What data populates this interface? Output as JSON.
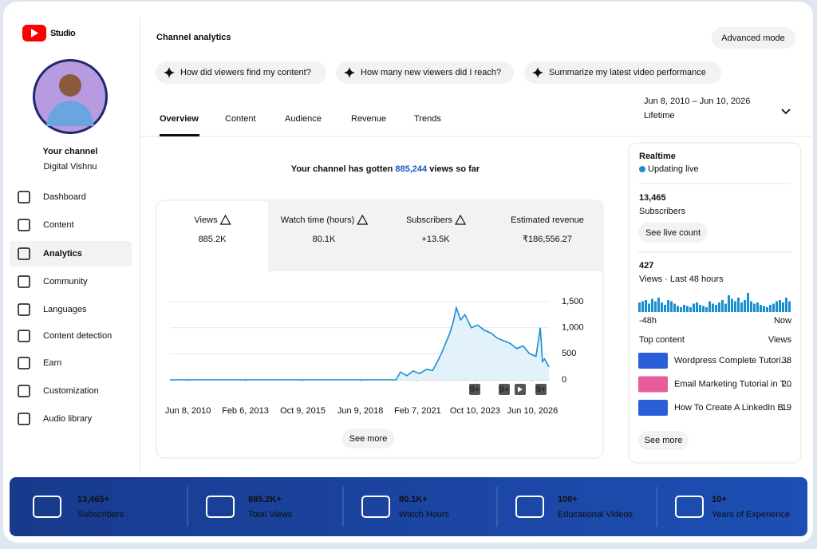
{
  "sidebar": {
    "logo": "Studio",
    "channel_title": "Your channel",
    "channel_name": "Digital Vishnu",
    "nav": [
      "Dashboard",
      "Content",
      "Analytics",
      "Community",
      "Languages",
      "Content detection",
      "Earn",
      "Customization",
      "Audio library"
    ],
    "active": 2
  },
  "header": {
    "title": "Channel analytics",
    "button": "Advanced mode",
    "prompts": [
      "How did viewers find my content?",
      "How many new viewers did I reach?",
      "Summarize my latest video performance"
    ]
  },
  "tabs": {
    "items": [
      "Overview",
      "Content",
      "Audience",
      "Revenue",
      "Trends"
    ],
    "active": 0
  },
  "date_range": {
    "range": "Jun 8, 2010 – Jun 10, 2026",
    "period": "Lifetime"
  },
  "headline": {
    "prefix": "Your channel has gotten ",
    "number": "885,244",
    "suffix": " views so far"
  },
  "metrics": [
    {
      "label": "Views",
      "value": "885.2K",
      "warning": true
    },
    {
      "label": "Watch time (hours)",
      "value": "80.1K",
      "warning": true
    },
    {
      "label": "Subscribers",
      "value": "+13.5K",
      "warning": true
    },
    {
      "label": "Estimated revenue",
      "value": "₹186,556.27",
      "warning": false
    }
  ],
  "chart_badges": [
    "9+",
    "9+",
    "9+"
  ],
  "see_more": "See more",
  "realtime": {
    "title": "Realtime",
    "status": "Updating live",
    "subscribers": "13,465",
    "subscribers_label": "Subscribers",
    "button": "See live count",
    "views": "427",
    "views_label": "Views · Last 48 hours",
    "start_label": "-48h",
    "end_label": "Now",
    "top_content_label": "Top content",
    "views_column": "Views",
    "items": [
      {
        "title": "Wordpress Complete Tutori...",
        "views": "38"
      },
      {
        "title": "Email Marketing Tutorial in T...",
        "views": "20"
      },
      {
        "title": "How To Create A LinkedIn B...",
        "views": "19"
      }
    ],
    "see_more": "See more"
  },
  "footer": [
    {
      "value": "13,465+",
      "label": "Subscribers"
    },
    {
      "value": "885.2K+",
      "label": "Total Views"
    },
    {
      "value": "80.1K+",
      "label": "Watch Hours"
    },
    {
      "value": "100+",
      "label": "Educational Videos"
    },
    {
      "value": "10+",
      "label": "Years of Experience"
    }
  ],
  "chart_data": [
    {
      "type": "line",
      "color": "#1a8fd1",
      "x": [
        2009.6,
        2012,
        2015,
        2018,
        2020.1,
        2020.3,
        2020.6,
        2020.9,
        2021.2,
        2021.5,
        2021.8,
        2022.0,
        2022.2,
        2022.4,
        2022.6,
        2022.75,
        2022.9,
        2023.1,
        2023.3,
        2023.6,
        2023.9,
        2024.2,
        2024.5,
        2024.8,
        2025.1,
        2025.4,
        2025.7,
        2026.0,
        2026.3,
        2026.6,
        2026.8,
        2026.9,
        2027.0,
        2027.2
      ],
      "values": [
        0,
        0,
        0,
        0,
        0,
        150,
        80,
        170,
        120,
        200,
        180,
        330,
        500,
        700,
        900,
        1100,
        1380,
        1150,
        1250,
        1000,
        1050,
        950,
        900,
        800,
        750,
        700,
        600,
        650,
        500,
        450,
        1000,
        350,
        400,
        250
      ],
      "xlim": [
        2009.6,
        2027.2
      ],
      "xticks": [
        {
          "value": 2010.44,
          "label": "Jun 8, 2010"
        },
        {
          "value": 2013.1,
          "label": "Feb 6, 2013"
        },
        {
          "value": 2015.77,
          "label": "Oct 9, 2015"
        },
        {
          "value": 2018.44,
          "label": "Jun 9, 2018"
        },
        {
          "value": 2021.1,
          "label": "Feb 7, 2021"
        },
        {
          "value": 2023.77,
          "label": "Oct 10, 2023"
        },
        {
          "value": 2026.44,
          "label": "Jun 10, 2026"
        }
      ],
      "ylim": [
        0,
        1500
      ],
      "yticks": [
        0,
        500,
        {
          "value": 1000,
          "label": "1,000"
        },
        {
          "value": 1500,
          "label": "1,500"
        }
      ],
      "grid": true
    },
    {
      "type": "bar",
      "color": "#1a8fd1",
      "values": [
        8,
        9,
        10,
        7,
        11,
        9,
        12,
        8,
        6,
        10,
        9,
        7,
        5,
        4,
        6,
        5,
        4,
        7,
        8,
        6,
        5,
        4,
        9,
        7,
        6,
        8,
        10,
        7,
        14,
        11,
        9,
        12,
        8,
        10,
        16,
        9,
        7,
        8,
        6,
        5,
        4,
        6,
        7,
        9,
        10,
        8,
        12,
        9
      ]
    }
  ]
}
